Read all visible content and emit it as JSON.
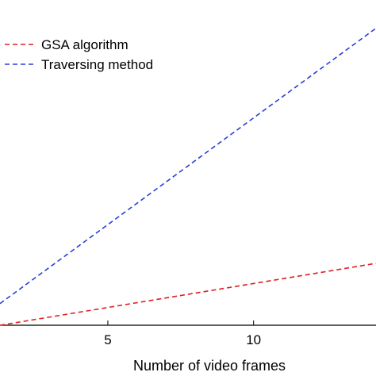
{
  "chart_data": {
    "type": "line",
    "title": "",
    "xlabel": "Number of video frames",
    "ylabel": "",
    "xlim": [
      1.3,
      14.2
    ],
    "ylim": [
      0,
      1
    ],
    "x_ticks": [
      5,
      10
    ],
    "grid": false,
    "legend": {
      "placement": "top-left"
    },
    "series": [
      {
        "name": "GSA algorithm",
        "color": "#e02020",
        "style": "dashed",
        "x": [
          1.3,
          14.2
        ],
        "y": [
          0.0,
          0.2
        ]
      },
      {
        "name": "Traversing method",
        "color": "#2a3fd6",
        "style": "dashed",
        "x": [
          1.3,
          14.2
        ],
        "y": [
          0.07,
          0.96
        ]
      }
    ]
  }
}
